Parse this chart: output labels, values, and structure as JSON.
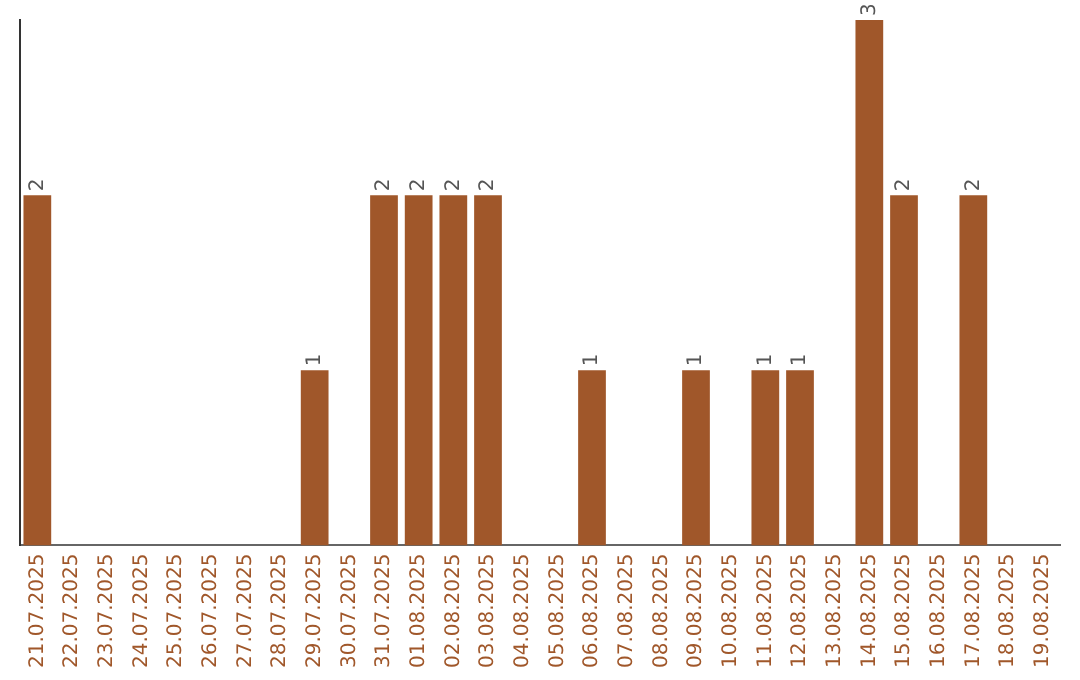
{
  "chart_data": {
    "type": "bar",
    "categories": [
      "21.07.2025",
      "22.07.2025",
      "23.07.2025",
      "24.07.2025",
      "25.07.2025",
      "26.07.2025",
      "27.07.2025",
      "28.07.2025",
      "29.07.2025",
      "30.07.2025",
      "31.07.2025",
      "01.08.2025",
      "02.08.2025",
      "03.08.2025",
      "04.08.2025",
      "05.08.2025",
      "06.08.2025",
      "07.08.2025",
      "08.08.2025",
      "09.08.2025",
      "10.08.2025",
      "11.08.2025",
      "12.08.2025",
      "13.08.2025",
      "14.08.2025",
      "15.08.2025",
      "16.08.2025",
      "17.08.2025",
      "18.08.2025",
      "19.08.2025"
    ],
    "values": [
      2,
      0,
      0,
      0,
      0,
      0,
      0,
      0,
      1,
      0,
      2,
      2,
      2,
      2,
      0,
      0,
      1,
      0,
      0,
      1,
      0,
      1,
      1,
      0,
      3,
      2,
      0,
      2,
      0,
      0
    ],
    "value_labels": [
      "2",
      null,
      null,
      null,
      null,
      null,
      null,
      null,
      "1",
      null,
      "2",
      "2",
      "2",
      "2",
      null,
      null,
      "1",
      null,
      null,
      "1",
      null,
      "1",
      "1",
      null,
      "3",
      "2",
      null,
      "2",
      null,
      null
    ],
    "color": "#a0572a",
    "grid": false,
    "legend": false
  }
}
